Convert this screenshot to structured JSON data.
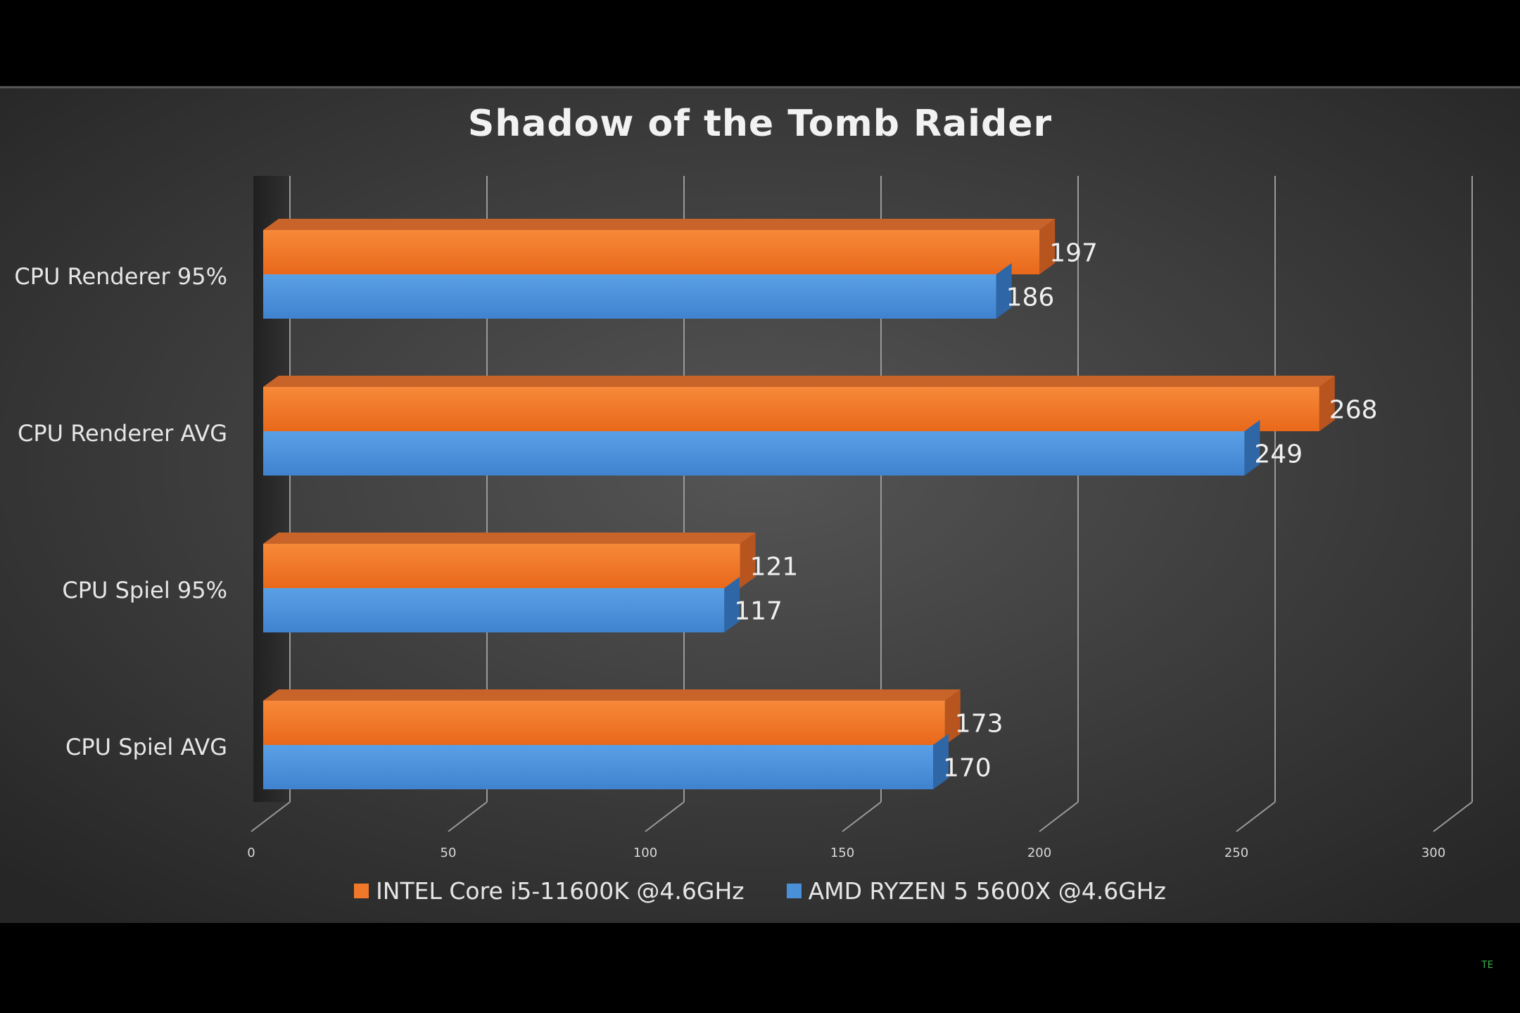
{
  "chart_data": {
    "type": "bar",
    "orientation": "horizontal",
    "title": "Shadow of the Tomb Raider",
    "categories": [
      "CPU Renderer 95%",
      "CPU Renderer AVG",
      "CPU Spiel 95%",
      "CPU Spiel AVG"
    ],
    "series": [
      {
        "name": "INTEL Core i5-11600K @4.6GHz",
        "color": "#f07828",
        "values": [
          197,
          268,
          121,
          173
        ]
      },
      {
        "name": "AMD RYZEN 5 5600X @4.6GHz",
        "color": "#4a90d9",
        "values": [
          186,
          249,
          117,
          170
        ]
      }
    ],
    "xlim": [
      0,
      300
    ],
    "xticks": [
      "0",
      "50",
      "100",
      "150",
      "200",
      "250",
      "300"
    ],
    "grid": true,
    "legend": "bottom",
    "style": "3d",
    "background": "#3a3a3a"
  },
  "watermark": "TE"
}
